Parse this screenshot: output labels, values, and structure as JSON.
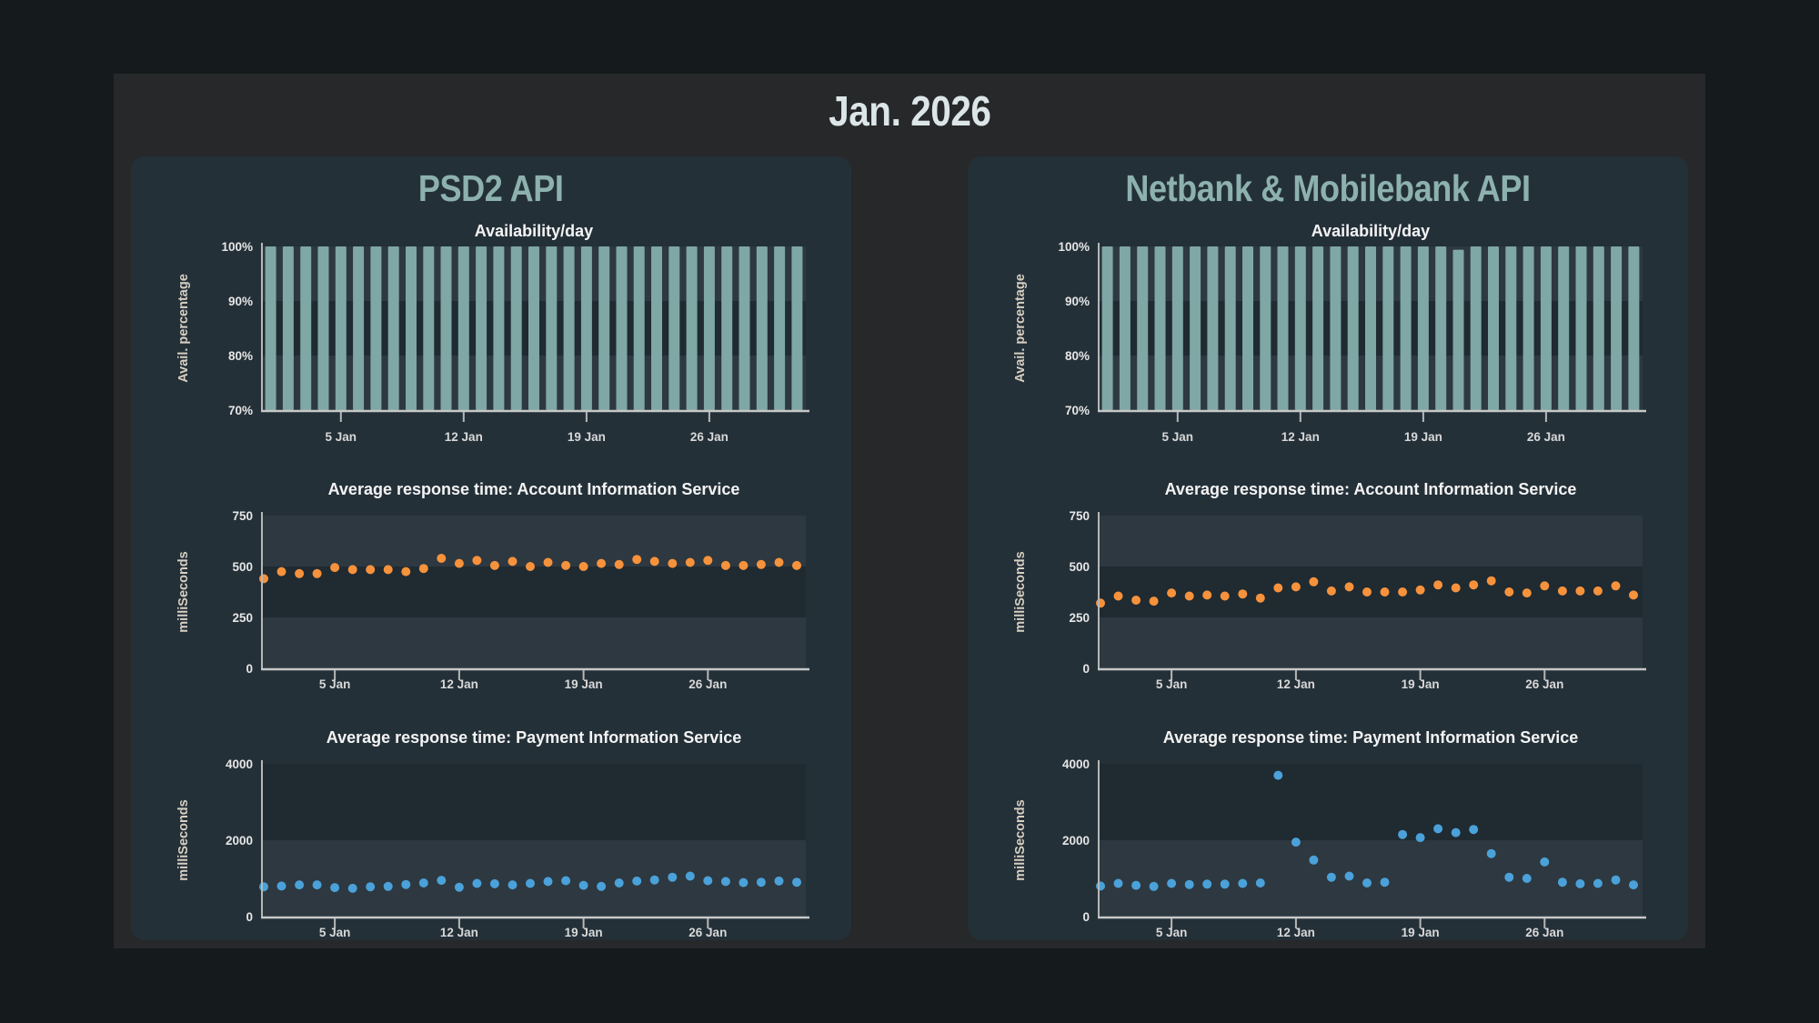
{
  "page_title": "Jan. 2026",
  "theme": {
    "background": "#151a1c",
    "panel": "#262829",
    "card": "#243038",
    "card_title_color": "#8db1ae",
    "page_title_color": "#dce6e8",
    "bar_color": "#7ea7a5",
    "ais_dot_color": "#f6923c",
    "pis_dot_color": "#4ba1d9"
  },
  "panels": [
    {
      "title": "PSD2 API"
    },
    {
      "title": "Netbank & Mobilebank API"
    }
  ],
  "chart_data": {
    "x_days": [
      1,
      2,
      3,
      4,
      5,
      6,
      7,
      8,
      9,
      10,
      11,
      12,
      13,
      14,
      15,
      16,
      17,
      18,
      19,
      20,
      21,
      22,
      23,
      24,
      25,
      26,
      27,
      28,
      29,
      30,
      31
    ],
    "x_tick_days": [
      5,
      12,
      19,
      26
    ],
    "x_tick_labels": [
      "5 Jan",
      "12 Jan",
      "19 Jan",
      "26 Jan"
    ],
    "charts": [
      {
        "panel": "PSD2 API",
        "type": "bar",
        "title": "Availability/day",
        "ylabel": "Avail. percentage",
        "ylim": [
          70,
          100
        ],
        "yticks": [
          70,
          80,
          90,
          100
        ],
        "ytick_labels": [
          "70%",
          "80%",
          "90%",
          "100%"
        ],
        "color": "#7ea7a5",
        "values": [
          100,
          100,
          100,
          100,
          100,
          100,
          100,
          100,
          100,
          100,
          100,
          100,
          100,
          100,
          100,
          100,
          100,
          100,
          100,
          100,
          100,
          100,
          100,
          100,
          100,
          100,
          100,
          100,
          100,
          100,
          100
        ]
      },
      {
        "panel": "PSD2 API",
        "type": "scatter",
        "title": "Average response time: Account Information Service",
        "ylabel": "milliSeconds",
        "ylim": [
          0,
          750
        ],
        "yticks": [
          0,
          250,
          500,
          750
        ],
        "ytick_labels": [
          "0",
          "250",
          "500",
          "750"
        ],
        "color": "#f6923c",
        "values": [
          440,
          475,
          465,
          465,
          495,
          485,
          485,
          485,
          475,
          490,
          540,
          515,
          530,
          505,
          525,
          500,
          520,
          505,
          500,
          515,
          510,
          535,
          525,
          515,
          520,
          530,
          505,
          505,
          510,
          520,
          505
        ]
      },
      {
        "panel": "PSD2 API",
        "type": "scatter",
        "title": "Average response time: Payment Information Service",
        "ylabel": "milliSeconds",
        "ylim": [
          0,
          4000
        ],
        "yticks": [
          0,
          2000,
          4000
        ],
        "ytick_labels": [
          "0",
          "2000",
          "4000"
        ],
        "color": "#4ba1d9",
        "values": [
          780,
          800,
          830,
          830,
          760,
          740,
          780,
          790,
          840,
          880,
          950,
          770,
          870,
          860,
          830,
          870,
          920,
          940,
          820,
          790,
          880,
          930,
          960,
          1030,
          1060,
          940,
          920,
          890,
          900,
          930,
          900
        ]
      },
      {
        "panel": "Netbank & Mobilebank API",
        "type": "bar",
        "title": "Availability/day",
        "ylabel": "Avail. percentage",
        "ylim": [
          70,
          100
        ],
        "yticks": [
          70,
          80,
          90,
          100
        ],
        "ytick_labels": [
          "70%",
          "80%",
          "90%",
          "100%"
        ],
        "color": "#7ea7a5",
        "values": [
          100,
          100,
          100,
          100,
          100,
          100,
          100,
          100,
          100,
          100,
          100,
          100,
          100,
          100,
          100,
          100,
          100,
          100,
          100,
          100,
          99.4,
          100,
          100,
          100,
          100,
          100,
          100,
          100,
          100,
          100,
          100
        ]
      },
      {
        "panel": "Netbank & Mobilebank API",
        "type": "scatter",
        "title": "Average response time: Account Information Service",
        "ylabel": "milliSeconds",
        "ylim": [
          0,
          750
        ],
        "yticks": [
          0,
          250,
          500,
          750
        ],
        "ytick_labels": [
          "0",
          "250",
          "500",
          "750"
        ],
        "color": "#f6923c",
        "values": [
          320,
          355,
          335,
          330,
          370,
          355,
          360,
          355,
          365,
          345,
          395,
          400,
          425,
          380,
          400,
          375,
          375,
          375,
          385,
          410,
          395,
          410,
          430,
          375,
          370,
          405,
          380,
          380,
          380,
          405,
          360
        ]
      },
      {
        "panel": "Netbank & Mobilebank API",
        "type": "scatter",
        "title": "Average response time: Payment Information Service",
        "ylabel": "milliSeconds",
        "ylim": [
          0,
          4000
        ],
        "yticks": [
          0,
          2000,
          4000
        ],
        "ytick_labels": [
          "0",
          "2000",
          "4000"
        ],
        "color": "#4ba1d9",
        "values": [
          800,
          870,
          820,
          790,
          870,
          840,
          850,
          850,
          870,
          880,
          3700,
          1950,
          1480,
          1030,
          1060,
          880,
          900,
          2150,
          2070,
          2300,
          2200,
          2280,
          1650,
          1030,
          1000,
          1430,
          900,
          860,
          870,
          960,
          830
        ]
      }
    ]
  }
}
